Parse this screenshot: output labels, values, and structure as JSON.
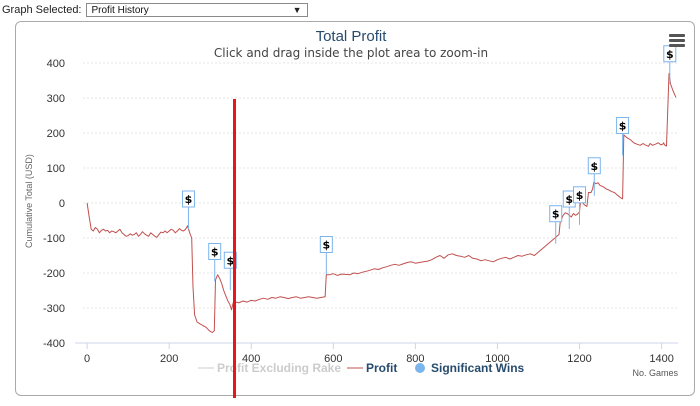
{
  "graph_selector": {
    "label": "Graph Selected:",
    "selected": "Profit History"
  },
  "menu_icon": "hamburger-menu-icon",
  "colors": {
    "profit": "#c0504d",
    "profit_excluding_rake": "#cccccc",
    "significant_wins": "#7cb5ec",
    "title": "#274b6d",
    "marker": "#e8161b"
  },
  "chart_data": {
    "type": "line",
    "title": "Total Profit",
    "subtitle": "Click and drag inside the plot area to zoom-in",
    "xlabel": "No. Games",
    "ylabel": "Cumulative Total (USD)",
    "xlim": [
      -10,
      1440
    ],
    "ylim": [
      -400,
      400
    ],
    "x_ticks": [
      0,
      200,
      400,
      600,
      800,
      1000,
      1200,
      1400
    ],
    "y_ticks": [
      400,
      300,
      200,
      100,
      0,
      -100,
      -200,
      -300,
      -400
    ],
    "legend": [
      "Profit Excluding Rake",
      "Profit",
      "Significant Wins"
    ],
    "legend_position": "bottom-center",
    "grid": "horizontal",
    "flag_label": "$",
    "series": [
      {
        "name": "Profit",
        "points": [
          [
            0,
            0
          ],
          [
            5,
            -40
          ],
          [
            10,
            -75
          ],
          [
            15,
            -80
          ],
          [
            20,
            -70
          ],
          [
            25,
            -75
          ],
          [
            30,
            -85
          ],
          [
            35,
            -78
          ],
          [
            40,
            -75
          ],
          [
            45,
            -80
          ],
          [
            50,
            -78
          ],
          [
            55,
            -85
          ],
          [
            60,
            -80
          ],
          [
            65,
            -82
          ],
          [
            70,
            -85
          ],
          [
            75,
            -80
          ],
          [
            80,
            -75
          ],
          [
            85,
            -85
          ],
          [
            90,
            -90
          ],
          [
            95,
            -95
          ],
          [
            100,
            -93
          ],
          [
            105,
            -88
          ],
          [
            110,
            -92
          ],
          [
            115,
            -90
          ],
          [
            120,
            -85
          ],
          [
            125,
            -95
          ],
          [
            130,
            -90
          ],
          [
            135,
            -82
          ],
          [
            140,
            -88
          ],
          [
            145,
            -92
          ],
          [
            150,
            -95
          ],
          [
            155,
            -85
          ],
          [
            160,
            -90
          ],
          [
            165,
            -95
          ],
          [
            170,
            -98
          ],
          [
            175,
            -90
          ],
          [
            180,
            -83
          ],
          [
            185,
            -85
          ],
          [
            190,
            -80
          ],
          [
            195,
            -85
          ],
          [
            200,
            -80
          ],
          [
            205,
            -75
          ],
          [
            210,
            -78
          ],
          [
            215,
            -85
          ],
          [
            220,
            -80
          ],
          [
            225,
            -73
          ],
          [
            230,
            -78
          ],
          [
            235,
            -80
          ],
          [
            240,
            -75
          ],
          [
            245,
            -65
          ],
          [
            250,
            -85
          ],
          [
            255,
            -100
          ],
          [
            258,
            -240
          ],
          [
            262,
            -320
          ],
          [
            268,
            -340
          ],
          [
            275,
            -345
          ],
          [
            282,
            -350
          ],
          [
            290,
            -355
          ],
          [
            298,
            -365
          ],
          [
            305,
            -370
          ],
          [
            310,
            -365
          ],
          [
            313,
            -220
          ],
          [
            318,
            -205
          ],
          [
            323,
            -215
          ],
          [
            328,
            -230
          ],
          [
            333,
            -250
          ],
          [
            338,
            -265
          ],
          [
            343,
            -280
          ],
          [
            348,
            -290
          ],
          [
            352,
            -305
          ],
          [
            356,
            -285
          ],
          [
            362,
            -283
          ],
          [
            370,
            -285
          ],
          [
            380,
            -280
          ],
          [
            390,
            -283
          ],
          [
            400,
            -278
          ],
          [
            410,
            -280
          ],
          [
            420,
            -275
          ],
          [
            430,
            -272
          ],
          [
            440,
            -275
          ],
          [
            450,
            -270
          ],
          [
            460,
            -272
          ],
          [
            470,
            -268
          ],
          [
            480,
            -270
          ],
          [
            490,
            -273
          ],
          [
            500,
            -270
          ],
          [
            510,
            -268
          ],
          [
            520,
            -272
          ],
          [
            530,
            -270
          ],
          [
            540,
            -268
          ],
          [
            550,
            -270
          ],
          [
            560,
            -272
          ],
          [
            570,
            -270
          ],
          [
            580,
            -268
          ],
          [
            583,
            -205
          ],
          [
            590,
            -205
          ],
          [
            600,
            -202
          ],
          [
            610,
            -207
          ],
          [
            620,
            -203
          ],
          [
            630,
            -204
          ],
          [
            640,
            -205
          ],
          [
            650,
            -200
          ],
          [
            660,
            -202
          ],
          [
            670,
            -198
          ],
          [
            680,
            -195
          ],
          [
            690,
            -192
          ],
          [
            700,
            -188
          ],
          [
            710,
            -190
          ],
          [
            720,
            -185
          ],
          [
            730,
            -182
          ],
          [
            740,
            -178
          ],
          [
            750,
            -175
          ],
          [
            760,
            -178
          ],
          [
            770,
            -174
          ],
          [
            780,
            -170
          ],
          [
            790,
            -168
          ],
          [
            800,
            -172
          ],
          [
            810,
            -170
          ],
          [
            820,
            -168
          ],
          [
            830,
            -166
          ],
          [
            840,
            -162
          ],
          [
            850,
            -155
          ],
          [
            860,
            -150
          ],
          [
            870,
            -158
          ],
          [
            880,
            -148
          ],
          [
            890,
            -145
          ],
          [
            900,
            -150
          ],
          [
            910,
            -152
          ],
          [
            920,
            -155
          ],
          [
            930,
            -150
          ],
          [
            940,
            -158
          ],
          [
            950,
            -160
          ],
          [
            960,
            -165
          ],
          [
            970,
            -162
          ],
          [
            980,
            -165
          ],
          [
            990,
            -168
          ],
          [
            1000,
            -162
          ],
          [
            1010,
            -158
          ],
          [
            1020,
            -155
          ],
          [
            1030,
            -160
          ],
          [
            1040,
            -155
          ],
          [
            1050,
            -150
          ],
          [
            1060,
            -152
          ],
          [
            1070,
            -148
          ],
          [
            1080,
            -145
          ],
          [
            1090,
            -150
          ],
          [
            1100,
            -140
          ],
          [
            1110,
            -130
          ],
          [
            1120,
            -120
          ],
          [
            1130,
            -110
          ],
          [
            1140,
            -100
          ],
          [
            1145,
            -95
          ],
          [
            1150,
            -90
          ],
          [
            1153,
            -55
          ],
          [
            1160,
            -35
          ],
          [
            1165,
            -28
          ],
          [
            1170,
            -30
          ],
          [
            1175,
            -35
          ],
          [
            1180,
            -40
          ],
          [
            1185,
            -30
          ],
          [
            1190,
            -35
          ],
          [
            1195,
            -32
          ],
          [
            1200,
            -25
          ],
          [
            1203,
            10
          ],
          [
            1208,
            0
          ],
          [
            1212,
            -5
          ],
          [
            1218,
            -10
          ],
          [
            1222,
            30
          ],
          [
            1228,
            30
          ],
          [
            1232,
            40
          ],
          [
            1235,
            60
          ],
          [
            1240,
            55
          ],
          [
            1245,
            58
          ],
          [
            1250,
            50
          ],
          [
            1255,
            48
          ],
          [
            1260,
            45
          ],
          [
            1265,
            40
          ],
          [
            1270,
            38
          ],
          [
            1275,
            35
          ],
          [
            1280,
            32
          ],
          [
            1285,
            30
          ],
          [
            1290,
            25
          ],
          [
            1295,
            20
          ],
          [
            1300,
            15
          ],
          [
            1305,
            12
          ],
          [
            1308,
            195
          ],
          [
            1312,
            190
          ],
          [
            1318,
            185
          ],
          [
            1325,
            180
          ],
          [
            1332,
            172
          ],
          [
            1340,
            168
          ],
          [
            1348,
            165
          ],
          [
            1355,
            170
          ],
          [
            1360,
            166
          ],
          [
            1368,
            162
          ],
          [
            1372,
            170
          ],
          [
            1378,
            165
          ],
          [
            1385,
            168
          ],
          [
            1392,
            172
          ],
          [
            1398,
            166
          ],
          [
            1403,
            168
          ],
          [
            1405,
            172
          ],
          [
            1408,
            165
          ],
          [
            1412,
            163
          ],
          [
            1418,
            370
          ],
          [
            1422,
            340
          ],
          [
            1428,
            320
          ],
          [
            1435,
            302
          ]
        ]
      },
      {
        "name": "Significant Wins",
        "points": [
          [
            247,
            -40
          ],
          [
            311,
            -190
          ],
          [
            349,
            -215
          ],
          [
            583,
            -170
          ],
          [
            1142,
            -82
          ],
          [
            1175,
            -40
          ],
          [
            1200,
            -28
          ],
          [
            1236,
            55
          ],
          [
            1305,
            170
          ],
          [
            1420,
            375
          ]
        ]
      }
    ]
  }
}
